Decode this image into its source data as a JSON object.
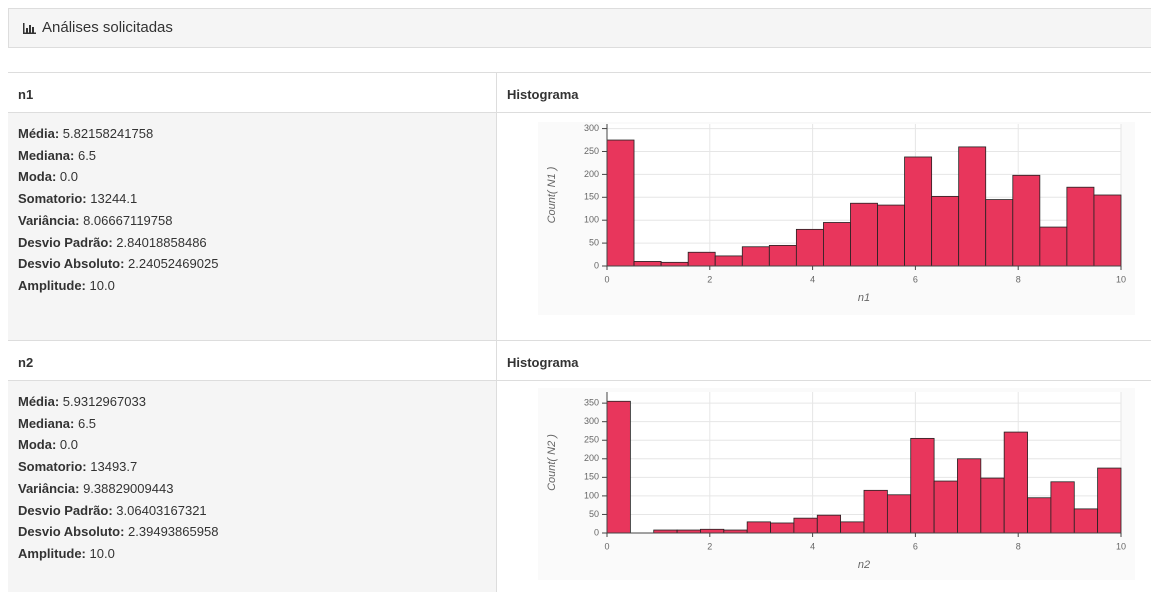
{
  "header": {
    "title": "Análises solicitadas"
  },
  "sections": [
    {
      "name": "n1",
      "chart_heading": "Histograma",
      "stats": [
        {
          "label": "Média:",
          "value": "5.82158241758"
        },
        {
          "label": "Mediana:",
          "value": "6.5"
        },
        {
          "label": "Moda:",
          "value": "0.0"
        },
        {
          "label": "Somatorio:",
          "value": "13244.1"
        },
        {
          "label": "Variância:",
          "value": "8.06667119758"
        },
        {
          "label": "Desvio Padrão:",
          "value": "2.84018858486"
        },
        {
          "label": "Desvio Absoluto:",
          "value": "2.24052469025"
        },
        {
          "label": "Amplitude:",
          "value": "10.0"
        }
      ]
    },
    {
      "name": "n2",
      "chart_heading": "Histograma",
      "stats": [
        {
          "label": "Média:",
          "value": "5.9312967033"
        },
        {
          "label": "Mediana:",
          "value": "6.5"
        },
        {
          "label": "Moda:",
          "value": "0.0"
        },
        {
          "label": "Somatorio:",
          "value": "13493.7"
        },
        {
          "label": "Variância:",
          "value": "9.38829009443"
        },
        {
          "label": "Desvio Padrão:",
          "value": "3.06403167321"
        },
        {
          "label": "Desvio Absoluto:",
          "value": "2.39493865958"
        },
        {
          "label": "Amplitude:",
          "value": "10.0"
        }
      ]
    }
  ],
  "chart_data": [
    {
      "type": "histogram",
      "xlabel": "n1",
      "ylabel": "Count( N1 )",
      "color": "#e8365c",
      "edgecolor": "#222222",
      "grid": true,
      "bins": [
        0,
        0.526,
        1.053,
        1.579,
        2.105,
        2.632,
        3.158,
        3.684,
        4.211,
        4.737,
        5.263,
        5.789,
        6.316,
        6.842,
        7.368,
        7.895,
        8.421,
        8.947,
        9.474,
        10
      ],
      "values": [
        275,
        10,
        8,
        30,
        22,
        42,
        45,
        80,
        95,
        137,
        133,
        238,
        152,
        260,
        145,
        198,
        85,
        172,
        155
      ],
      "xlim": [
        0,
        10
      ],
      "xticks": [
        0,
        2,
        4,
        6,
        8,
        10
      ],
      "ylim": [
        0,
        310
      ],
      "yticks": [
        0,
        50,
        100,
        150,
        200,
        250,
        300
      ]
    },
    {
      "type": "histogram",
      "xlabel": "n2",
      "ylabel": "Count( N2 )",
      "color": "#e8365c",
      "edgecolor": "#222222",
      "grid": true,
      "bins": [
        0,
        0.455,
        0.909,
        1.364,
        1.818,
        2.273,
        2.727,
        3.182,
        3.636,
        4.091,
        4.545,
        5,
        5.455,
        5.909,
        6.364,
        6.818,
        7.273,
        7.727,
        8.182,
        8.636,
        9.091,
        9.545,
        10
      ],
      "values": [
        355,
        0,
        8,
        8,
        10,
        8,
        30,
        27,
        40,
        48,
        30,
        115,
        103,
        255,
        140,
        200,
        148,
        272,
        95,
        138,
        65,
        175
      ],
      "xlim": [
        0,
        10
      ],
      "xticks": [
        0,
        2,
        4,
        6,
        8,
        10
      ],
      "ylim": [
        0,
        380
      ],
      "yticks": [
        0,
        50,
        100,
        150,
        200,
        250,
        300,
        350
      ]
    }
  ]
}
